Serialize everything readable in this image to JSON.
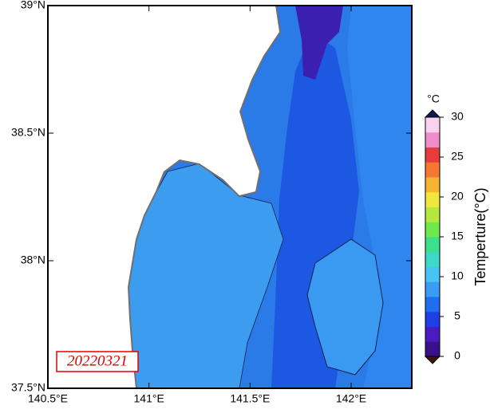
{
  "map": {
    "xlim": [
      140.5,
      142.3
    ],
    "ylim": [
      37.5,
      39
    ],
    "lon_ticks": [
      {
        "value": 140.5,
        "label": "140.5°E"
      },
      {
        "value": 141,
        "label": "141°E"
      },
      {
        "value": 141.5,
        "label": "141.5°E"
      },
      {
        "value": 142,
        "label": "142°E"
      }
    ],
    "lat_ticks": [
      {
        "value": 37.5,
        "label": "37.5°N"
      },
      {
        "value": 38,
        "label": "38°N"
      },
      {
        "value": 38.5,
        "label": "38.5°N"
      },
      {
        "value": 39,
        "label": "39°N"
      }
    ],
    "date_label": "20220321"
  },
  "colorbar": {
    "label": "Temperture(°C)",
    "unit": "°C",
    "clim": [
      0,
      30
    ],
    "ticks": [
      0,
      5,
      10,
      15,
      20,
      25,
      30
    ],
    "colors": [
      "#3a0f8a",
      "#4a1cc0",
      "#1e3ee6",
      "#1f6ef0",
      "#3a9cf5",
      "#46c4f5",
      "#3cd8c8",
      "#3ce08a",
      "#6ee84a",
      "#b4e83c",
      "#f0e63c",
      "#f5b432",
      "#f57832",
      "#e63c3c",
      "#f08cc8",
      "#fad2ee"
    ]
  }
}
